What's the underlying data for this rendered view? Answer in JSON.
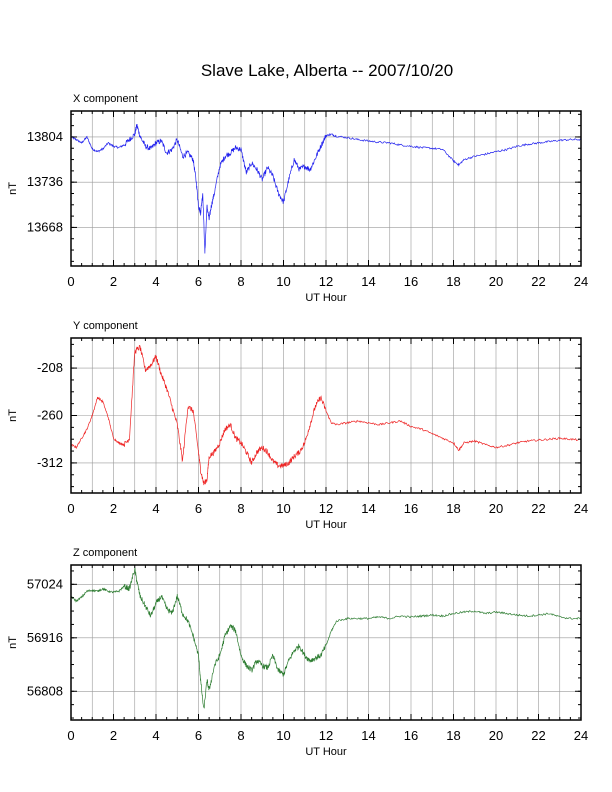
{
  "title": "Slave Lake, Alberta -- 2007/10/20",
  "chart_data": [
    {
      "type": "line",
      "title": "X component",
      "xlabel": "UT Hour",
      "ylabel": "nT",
      "xlim": [
        0,
        24
      ],
      "ylim": [
        13610,
        13843
      ],
      "xticks": [
        0,
        2,
        4,
        6,
        8,
        10,
        12,
        14,
        16,
        18,
        20,
        22,
        24
      ],
      "yticks": [
        13668,
        13736,
        13804
      ],
      "grid": true,
      "color": "#2222ee",
      "series": [
        {
          "x": [
            0,
            0.25,
            0.5,
            0.75,
            1,
            1.25,
            1.5,
            1.75,
            2,
            2.25,
            2.5,
            2.75,
            3,
            3.1,
            3.25,
            3.5,
            3.75,
            4,
            4.25,
            4.5,
            4.75,
            5,
            5.25,
            5.5,
            5.75,
            5.9,
            6,
            6.1,
            6.2,
            6.3,
            6.4,
            6.5,
            6.6,
            6.75,
            7,
            7.25,
            7.5,
            7.75,
            8,
            8.25,
            8.5,
            8.75,
            9,
            9.25,
            9.5,
            9.75,
            10,
            10.25,
            10.5,
            10.75,
            11,
            11.25,
            11.5,
            11.75,
            12,
            12.25,
            12.5,
            13,
            13.5,
            14,
            14.5,
            15,
            15.5,
            16,
            16.5,
            17,
            17.5,
            18,
            18.25,
            18.5,
            19,
            19.5,
            20,
            20.5,
            21,
            21.5,
            22,
            22.5,
            23,
            23.5,
            24
          ],
          "y": [
            13804,
            13800,
            13795,
            13804,
            13786,
            13782,
            13786,
            13795,
            13790,
            13788,
            13792,
            13800,
            13808,
            13822,
            13805,
            13790,
            13786,
            13795,
            13798,
            13780,
            13785,
            13800,
            13775,
            13780,
            13770,
            13735,
            13700,
            13690,
            13720,
            13630,
            13700,
            13680,
            13700,
            13720,
            13760,
            13775,
            13780,
            13788,
            13785,
            13750,
            13765,
            13755,
            13740,
            13758,
            13745,
            13720,
            13706,
            13740,
            13770,
            13755,
            13760,
            13755,
            13772,
            13790,
            13806,
            13808,
            13805,
            13803,
            13800,
            13798,
            13796,
            13795,
            13792,
            13790,
            13788,
            13787,
            13785,
            13768,
            13762,
            13770,
            13775,
            13778,
            13782,
            13785,
            13790,
            13793,
            13795,
            13797,
            13799,
            13800,
            13800
          ]
        }
      ]
    },
    {
      "type": "line",
      "title": "Y component",
      "xlabel": "UT Hour",
      "ylabel": "nT",
      "xlim": [
        0,
        24
      ],
      "ylim": [
        -345,
        -175
      ],
      "xticks": [
        0,
        2,
        4,
        6,
        8,
        10,
        12,
        14,
        16,
        18,
        20,
        22,
        24
      ],
      "yticks": [
        -312,
        -260,
        -208
      ],
      "grid": true,
      "color": "#ee2222",
      "series": [
        {
          "x": [
            0,
            0.25,
            0.5,
            0.75,
            1,
            1.25,
            1.5,
            1.75,
            2,
            2.25,
            2.5,
            2.75,
            3,
            3.25,
            3.5,
            3.75,
            4,
            4.25,
            4.5,
            4.75,
            5,
            5.25,
            5.5,
            5.75,
            6,
            6.1,
            6.25,
            6.4,
            6.5,
            6.75,
            7,
            7.25,
            7.5,
            7.75,
            8,
            8.25,
            8.5,
            8.75,
            9,
            9.25,
            9.5,
            9.75,
            10,
            10.25,
            10.5,
            10.75,
            11,
            11.25,
            11.5,
            11.75,
            12,
            12.25,
            12.5,
            13,
            13.5,
            14,
            14.5,
            15,
            15.5,
            16,
            16.5,
            17,
            17.5,
            18,
            18.25,
            18.5,
            19,
            19.5,
            20,
            20.5,
            21,
            21.5,
            22,
            22.5,
            23,
            23.5,
            24
          ],
          "y": [
            -292,
            -295,
            -285,
            -275,
            -260,
            -240,
            -245,
            -262,
            -285,
            -290,
            -292,
            -285,
            -190,
            -185,
            -210,
            -205,
            -195,
            -215,
            -230,
            -250,
            -270,
            -310,
            -250,
            -255,
            -300,
            -320,
            -335,
            -330,
            -305,
            -300,
            -290,
            -275,
            -270,
            -285,
            -290,
            -300,
            -312,
            -300,
            -295,
            -300,
            -310,
            -315,
            -315,
            -312,
            -305,
            -300,
            -290,
            -270,
            -250,
            -240,
            -255,
            -268,
            -270,
            -268,
            -266,
            -268,
            -270,
            -268,
            -266,
            -272,
            -275,
            -280,
            -285,
            -290,
            -298,
            -290,
            -288,
            -292,
            -295,
            -293,
            -290,
            -288,
            -287,
            -286,
            -285,
            -286,
            -287
          ]
        }
      ]
    },
    {
      "type": "line",
      "title": "Z component",
      "xlabel": "UT Hour",
      "ylabel": "nT",
      "xlim": [
        0,
        24
      ],
      "ylim": [
        56750,
        57063
      ],
      "xticks": [
        0,
        2,
        4,
        6,
        8,
        10,
        12,
        14,
        16,
        18,
        20,
        22,
        24
      ],
      "yticks": [
        56808,
        56916,
        57024
      ],
      "grid": true,
      "color": "#2e7d32",
      "series": [
        {
          "x": [
            0,
            0.25,
            0.5,
            0.75,
            1,
            1.25,
            1.5,
            1.75,
            2,
            2.25,
            2.5,
            2.75,
            3,
            3.1,
            3.25,
            3.5,
            3.75,
            4,
            4.25,
            4.5,
            4.75,
            5,
            5.25,
            5.5,
            5.75,
            6,
            6.1,
            6.25,
            6.4,
            6.5,
            6.75,
            7,
            7.25,
            7.5,
            7.75,
            8,
            8.25,
            8.5,
            8.75,
            9,
            9.25,
            9.5,
            9.75,
            10,
            10.25,
            10.5,
            10.75,
            11,
            11.25,
            11.5,
            11.75,
            12,
            12.25,
            12.5,
            13,
            13.5,
            14,
            14.5,
            15,
            15.5,
            16,
            16.5,
            17,
            17.5,
            18,
            18.5,
            19,
            19.5,
            20,
            20.5,
            21,
            21.5,
            22,
            22.5,
            23,
            23.5,
            24
          ],
          "y": [
            57000,
            56990,
            56998,
            57010,
            57012,
            57010,
            57015,
            57010,
            57008,
            57010,
            57020,
            57015,
            57055,
            57030,
            57000,
            56980,
            56960,
            56985,
            57000,
            56975,
            56965,
            57000,
            56965,
            56950,
            56920,
            56880,
            56830,
            56770,
            56830,
            56810,
            56860,
            56880,
            56920,
            56940,
            56930,
            56880,
            56860,
            56850,
            56870,
            56860,
            56855,
            56880,
            56850,
            56842,
            56870,
            56890,
            56900,
            56880,
            56870,
            56875,
            56880,
            56900,
            56930,
            56950,
            56955,
            56955,
            56955,
            56958,
            56955,
            56960,
            56958,
            56960,
            56962,
            56960,
            56965,
            56968,
            56970,
            56965,
            56968,
            56965,
            56962,
            56960,
            56962,
            56965,
            56958,
            56955,
            56955
          ]
        }
      ]
    }
  ]
}
